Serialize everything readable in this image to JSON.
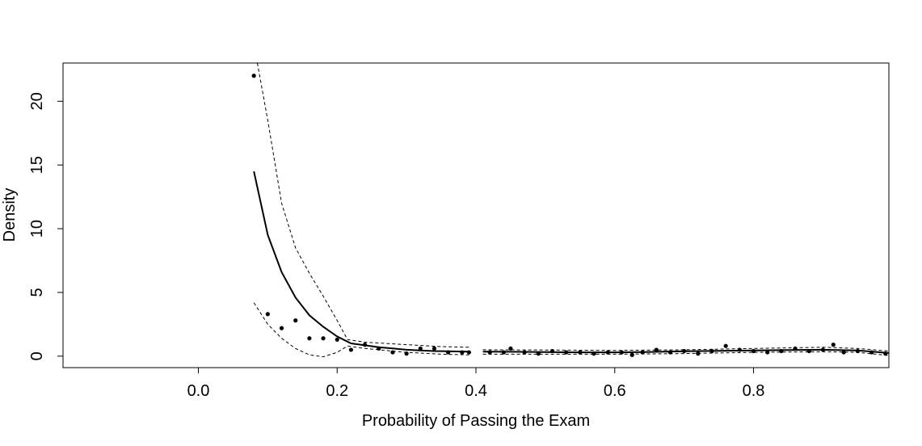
{
  "chart_data": {
    "type": "line",
    "title": "",
    "xlabel": "Probability of Passing the Exam",
    "ylabel": "Density",
    "xlim": [
      -0.195,
      0.995
    ],
    "ylim": [
      -0.9,
      23.0
    ],
    "grid": false,
    "x_ticks": [
      {
        "value": 0.0,
        "label": "0.0"
      },
      {
        "value": 0.2,
        "label": "0.2"
      },
      {
        "value": 0.4,
        "label": "0.4"
      },
      {
        "value": 0.6,
        "label": "0.6"
      },
      {
        "value": 0.8,
        "label": "0.8"
      }
    ],
    "y_ticks": [
      {
        "value": 0,
        "label": "0"
      },
      {
        "value": 5,
        "label": "5"
      },
      {
        "value": 10,
        "label": "10"
      },
      {
        "value": 15,
        "label": "15"
      },
      {
        "value": 20,
        "label": "20"
      }
    ],
    "points": {
      "x": [
        0.08,
        0.1,
        0.12,
        0.14,
        0.16,
        0.18,
        0.2,
        0.22,
        0.24,
        0.26,
        0.28,
        0.3,
        0.32,
        0.34,
        0.36,
        0.38,
        0.39,
        0.42,
        0.44,
        0.45,
        0.47,
        0.49,
        0.51,
        0.53,
        0.55,
        0.57,
        0.59,
        0.61,
        0.625,
        0.64,
        0.66,
        0.68,
        0.7,
        0.72,
        0.74,
        0.76,
        0.78,
        0.8,
        0.82,
        0.84,
        0.86,
        0.88,
        0.9,
        0.915,
        0.93,
        0.95,
        0.97,
        0.99
      ],
      "y": [
        22.0,
        3.3,
        2.2,
        2.8,
        1.4,
        1.4,
        1.3,
        0.5,
        0.9,
        0.6,
        0.3,
        0.2,
        0.6,
        0.6,
        0.3,
        0.3,
        0.3,
        0.3,
        0.3,
        0.6,
        0.3,
        0.2,
        0.4,
        0.3,
        0.3,
        0.2,
        0.3,
        0.3,
        0.1,
        0.3,
        0.5,
        0.3,
        0.4,
        0.2,
        0.4,
        0.8,
        0.5,
        0.4,
        0.3,
        0.4,
        0.6,
        0.4,
        0.5,
        0.9,
        0.3,
        0.4,
        0.3,
        0.2
      ]
    },
    "series": [
      {
        "style": "solid",
        "segments": [
          {
            "x": [
              0.08,
              0.1,
              0.12,
              0.14,
              0.16,
              0.18,
              0.2,
              0.22,
              0.24,
              0.26,
              0.28,
              0.3,
              0.32,
              0.34,
              0.36,
              0.38,
              0.39
            ],
            "y": [
              14.5,
              9.5,
              6.6,
              4.6,
              3.2,
              2.3,
              1.55,
              1.0,
              0.85,
              0.7,
              0.6,
              0.5,
              0.45,
              0.4,
              0.38,
              0.36,
              0.35
            ]
          },
          {
            "x": [
              0.41,
              0.45,
              0.5,
              0.55,
              0.6,
              0.65,
              0.7,
              0.75,
              0.8,
              0.85,
              0.9,
              0.95,
              0.995
            ],
            "y": [
              0.35,
              0.34,
              0.32,
              0.3,
              0.3,
              0.33,
              0.38,
              0.42,
              0.45,
              0.48,
              0.5,
              0.45,
              0.25
            ]
          }
        ]
      },
      {
        "style": "dashed",
        "segments": [
          {
            "x": [
              0.085,
              0.1,
              0.12,
              0.14,
              0.16,
              0.18,
              0.2,
              0.215,
              0.24,
              0.3,
              0.35,
              0.39
            ],
            "y": [
              23.0,
              18.5,
              12.0,
              8.5,
              6.5,
              4.7,
              2.8,
              1.3,
              1.1,
              0.9,
              0.75,
              0.7
            ]
          },
          {
            "x": [
              0.41,
              0.5,
              0.6,
              0.7,
              0.8,
              0.9,
              0.95,
              0.995
            ],
            "y": [
              0.5,
              0.48,
              0.45,
              0.5,
              0.6,
              0.7,
              0.6,
              0.4
            ]
          }
        ]
      },
      {
        "style": "dashed",
        "segments": [
          {
            "x": [
              0.08,
              0.1,
              0.12,
              0.14,
              0.16,
              0.18,
              0.2,
              0.215,
              0.24,
              0.3,
              0.35,
              0.39
            ],
            "y": [
              4.2,
              2.5,
              1.4,
              0.6,
              0.1,
              -0.05,
              0.3,
              0.8,
              0.6,
              0.3,
              0.15,
              0.1
            ]
          },
          {
            "x": [
              0.41,
              0.5,
              0.6,
              0.7,
              0.8,
              0.9,
              0.95,
              0.995
            ],
            "y": [
              0.15,
              0.15,
              0.15,
              0.2,
              0.3,
              0.35,
              0.3,
              0.05
            ]
          }
        ]
      }
    ]
  }
}
